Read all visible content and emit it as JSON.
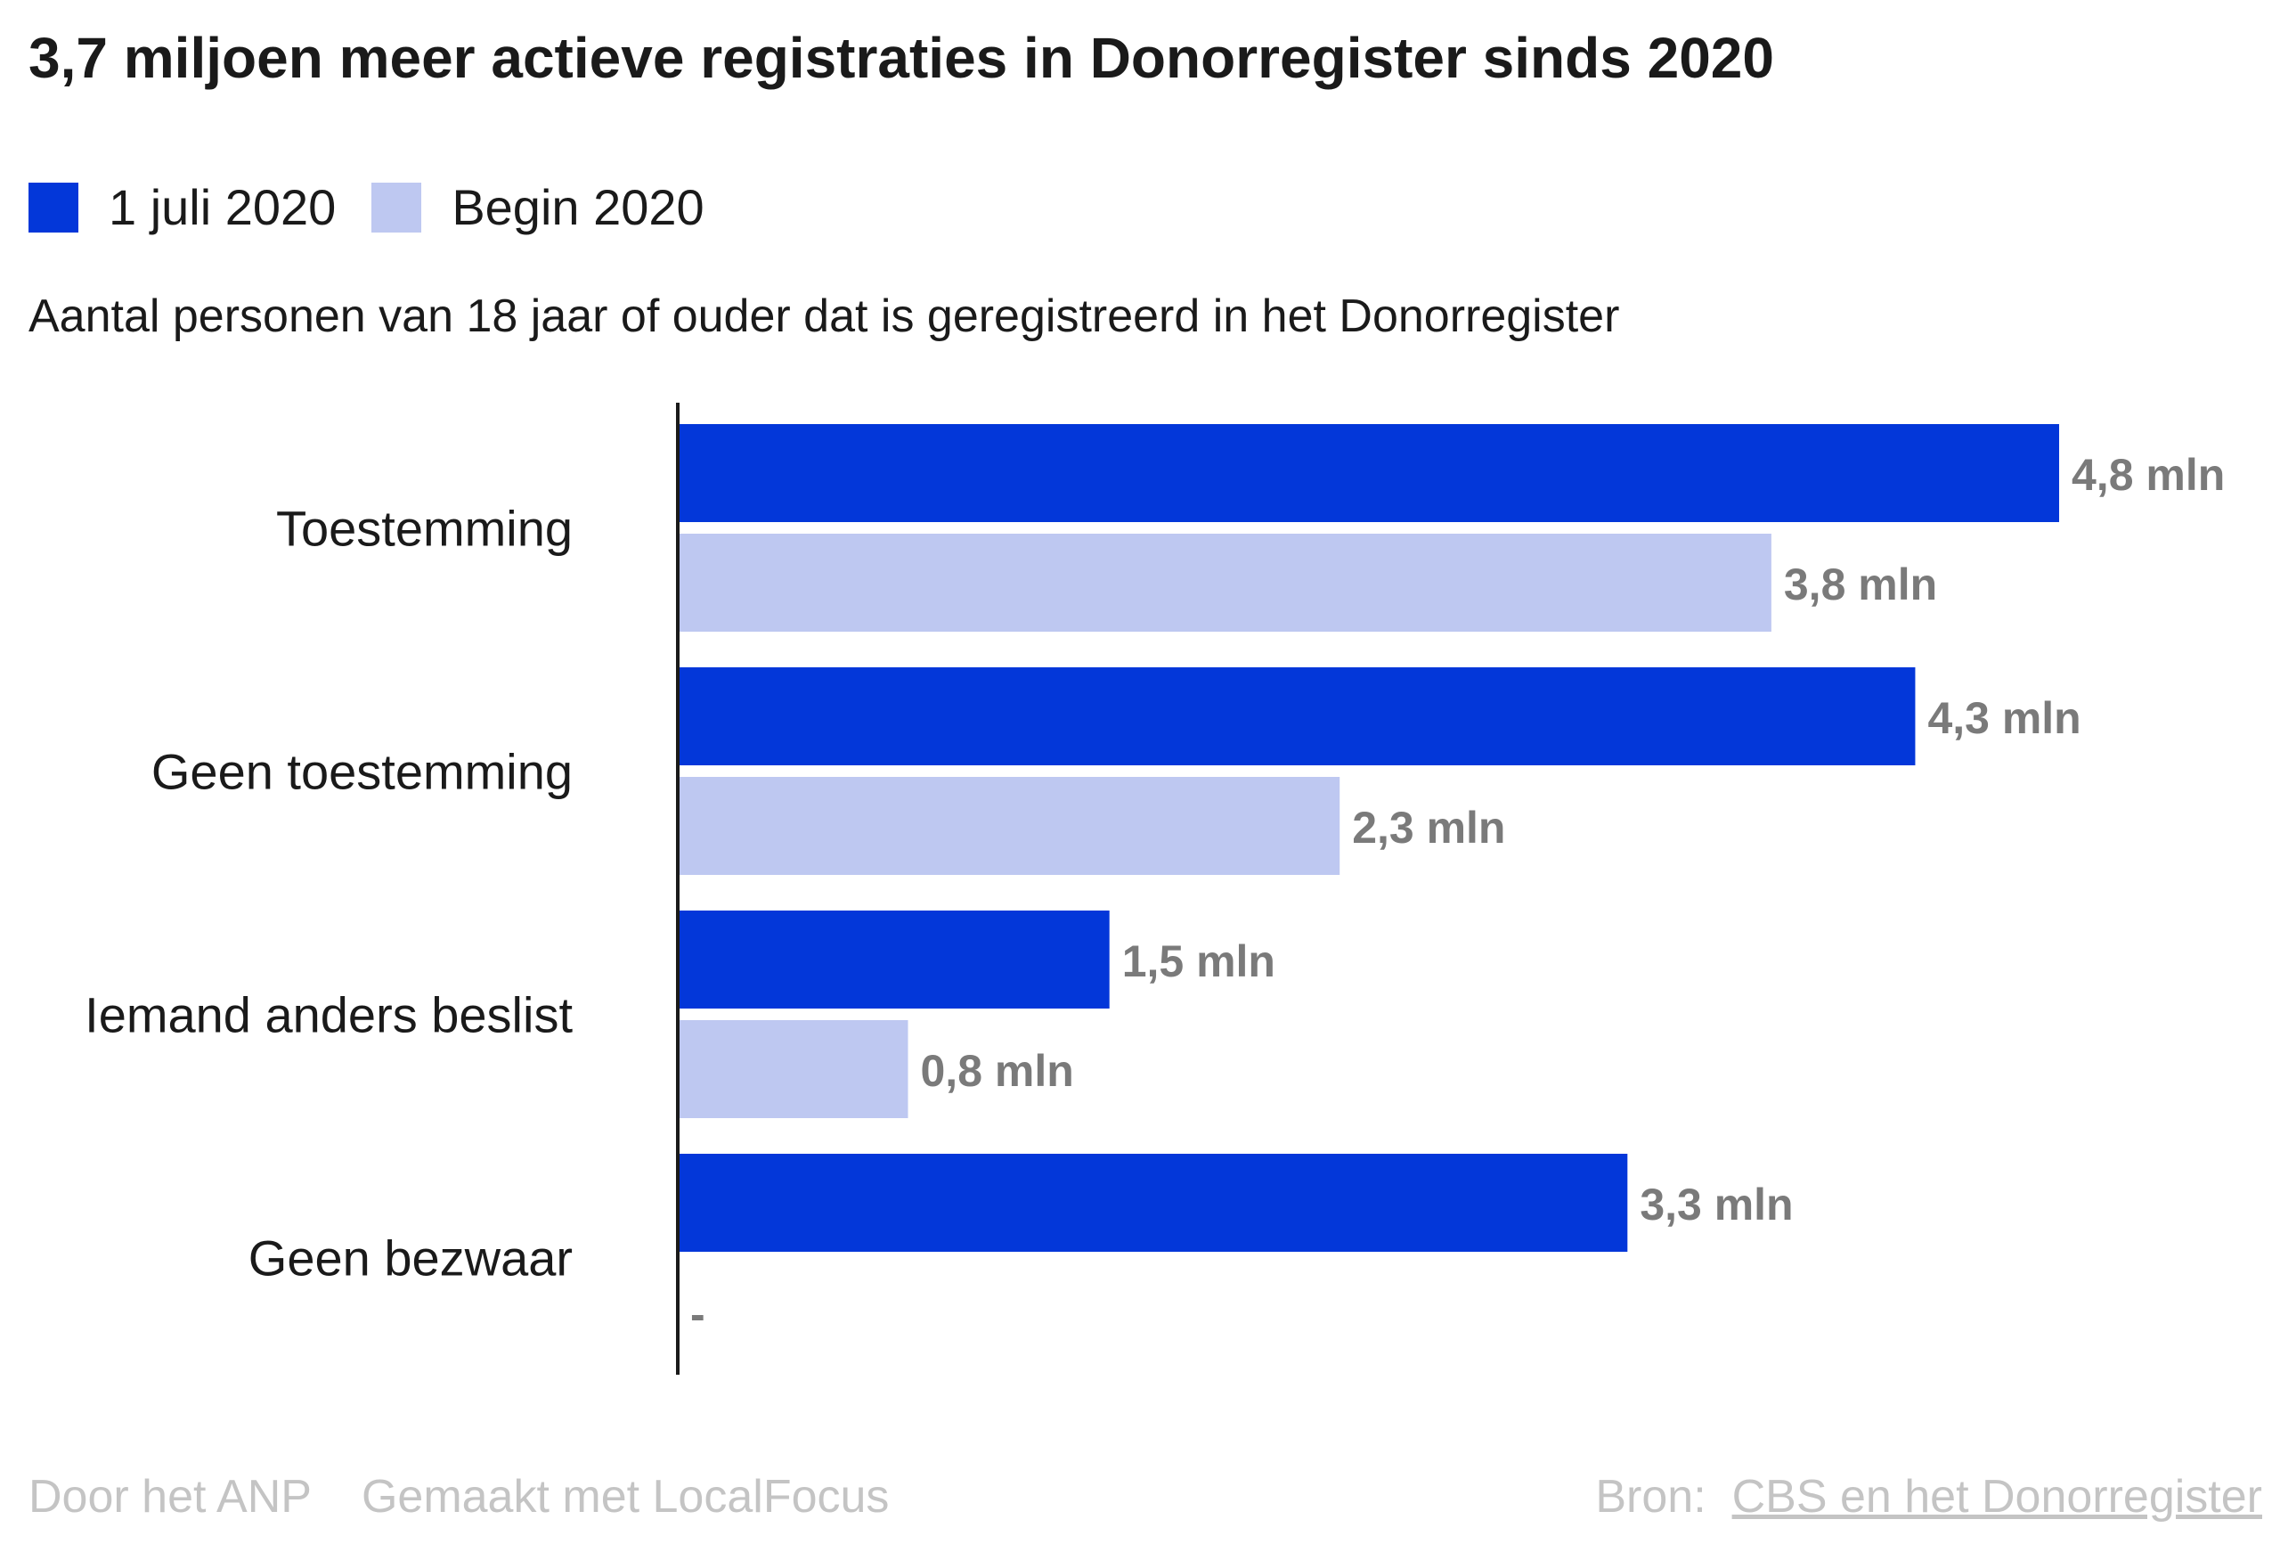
{
  "title": "3,7 miljoen meer actieve registraties in Donorregister sinds 2020",
  "subtitle": "Aantal personen van 18 jaar of ouder dat is geregistreerd in het Donorregister",
  "colors": {
    "primary": "#0337d9",
    "secondary": "#bec8f1",
    "label": "#7a7a7a",
    "axis": "#1a1a1a"
  },
  "footer": {
    "by": "Door het ANP",
    "made": "Gemaakt met LocalFocus",
    "source_label": "Bron:",
    "source_link": "CBS en het Donorregister"
  },
  "chart_data": {
    "type": "bar",
    "orientation": "horizontal",
    "categories": [
      "Toestemming",
      "Geen toestemming",
      "Iemand anders beslist",
      "Geen bezwaar"
    ],
    "series": [
      {
        "name": "1 juli 2020",
        "color": "#0337d9",
        "values": [
          4.8,
          4.3,
          1.5,
          3.3
        ],
        "labels": [
          "4,8 mln",
          "4,3 mln",
          "1,5 mln",
          "3,3 mln"
        ]
      },
      {
        "name": "Begin 2020",
        "color": "#bec8f1",
        "values": [
          3.8,
          2.3,
          0.8,
          null
        ],
        "labels": [
          "3,8 mln",
          "2,3 mln",
          "0,8 mln",
          "-"
        ]
      }
    ],
    "unit": "mln",
    "xlim": [
      0,
      4.8
    ],
    "grid": false,
    "legend": "top-left"
  }
}
